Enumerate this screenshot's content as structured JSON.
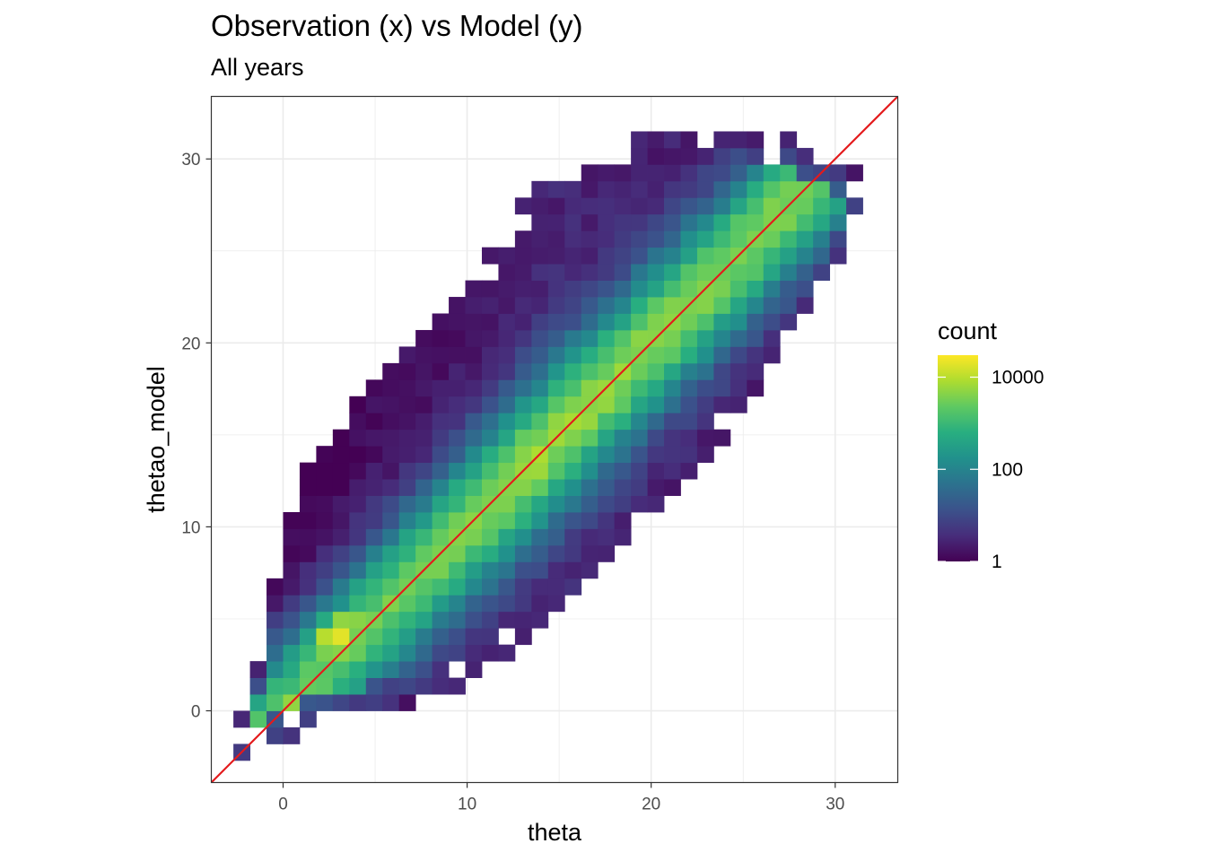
{
  "chart_data": {
    "type": "heatmap",
    "title": "Observation (x) vs Model (y)",
    "subtitle": "All years",
    "xlabel": "theta",
    "ylabel": "thetao_model",
    "xlim": [
      -3.9,
      33.4
    ],
    "ylim": [
      -3.9,
      33.4
    ],
    "xticks": [
      0,
      10,
      20,
      30
    ],
    "yticks": [
      0,
      10,
      20,
      30
    ],
    "bin_width": 0.9,
    "grid": true,
    "legend": {
      "title": "count",
      "position": "right",
      "scale": "log10",
      "ticks": [
        {
          "value": 1,
          "label": "1"
        },
        {
          "value": 100,
          "label": "100"
        },
        {
          "value": 10000,
          "label": "10000"
        }
      ],
      "colormap": "viridis"
    },
    "reference_line": {
      "slope": 1,
      "intercept": 0,
      "color": "#e41a1c"
    },
    "band": {
      "centers_x": [
        -1.8,
        0.0,
        3.0,
        6.0,
        10.0,
        14.0,
        18.0,
        22.0,
        26.0,
        29.0,
        31.0
      ],
      "upper_y": [
        -0.5,
        11.0,
        15.5,
        19.5,
        23.0,
        28.5,
        30.5,
        31.5,
        31.0,
        30.5,
        29.0
      ],
      "lower_y": [
        -2.5,
        -1.5,
        -0.5,
        0.5,
        1.8,
        4.5,
        8.5,
        12.5,
        18.0,
        22.0,
        26.5
      ]
    },
    "peak_counts": [
      {
        "x": 1.2,
        "y": 0.3,
        "count": 30000
      },
      {
        "x": 2.8,
        "y": 3.8,
        "count": 25000
      },
      {
        "x": 3.5,
        "y": 4.5,
        "count": 15000
      }
    ]
  }
}
